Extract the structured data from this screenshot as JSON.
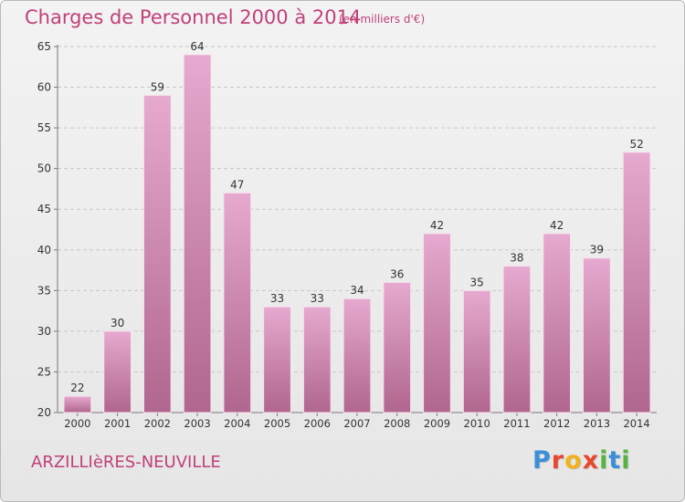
{
  "header": {
    "title": "Charges de Personnel 2000 à 2014",
    "subtitle": "(en milliers d'€)"
  },
  "footer": {
    "commune": "ARZILLIèRES-NEUVILLE",
    "brand": "Proxiti",
    "brand_colors": [
      "#3a8fd8",
      "#e8492e",
      "#f2b21c",
      "#e8492e",
      "#58b442",
      "#3a8fd8",
      "#58b442"
    ]
  },
  "colors": {
    "bar_top": "#e6a9cf",
    "bar_bottom": "#b0668e",
    "accent": "#c0407a",
    "grid": "#c8c8c8"
  },
  "chart_data": {
    "type": "bar",
    "title": "Charges de Personnel 2000 à 2014",
    "subtitle": "(en milliers d'€)",
    "categories": [
      "2000",
      "2001",
      "2002",
      "2003",
      "2004",
      "2005",
      "2006",
      "2007",
      "2008",
      "2009",
      "2010",
      "2011",
      "2012",
      "2013",
      "2014"
    ],
    "values": [
      22,
      30,
      59,
      64,
      47,
      33,
      33,
      34,
      36,
      42,
      35,
      38,
      42,
      39,
      52
    ],
    "ylim": [
      20,
      65
    ],
    "yticks": [
      20,
      25,
      30,
      35,
      40,
      45,
      50,
      55,
      60,
      65
    ],
    "grid": "horizontal dashed",
    "data_labels": true
  }
}
